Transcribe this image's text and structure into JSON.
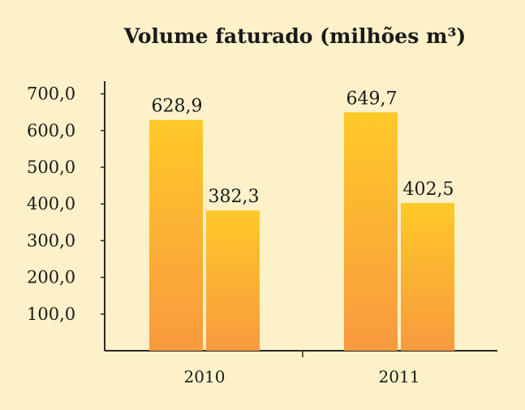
{
  "chart_data": {
    "type": "bar",
    "title": "Volume faturado (milhões m³)",
    "xlabel": "",
    "ylabel": "",
    "categories": [
      "2010",
      "2011"
    ],
    "series": [
      {
        "values": [
          628.9,
          649.7
        ]
      },
      {
        "values": [
          382.3,
          402.5
        ]
      }
    ],
    "data_labels": [
      [
        "628,9",
        "649,7"
      ],
      [
        "382,3",
        "402,5"
      ]
    ],
    "ylim": [
      0,
      700
    ],
    "yticks": [
      100,
      200,
      300,
      400,
      500,
      600,
      700
    ],
    "ytick_labels": [
      "100,0",
      "200,0",
      "300,0",
      "400,0",
      "500,0",
      "600,0",
      "700,0"
    ],
    "grid": false,
    "legend": "none",
    "colors": {
      "bar_top": "#ffc928",
      "bar_bottom": "#f89a3f",
      "background": "#fcf1c9",
      "axis": "#2a2a2a"
    }
  }
}
